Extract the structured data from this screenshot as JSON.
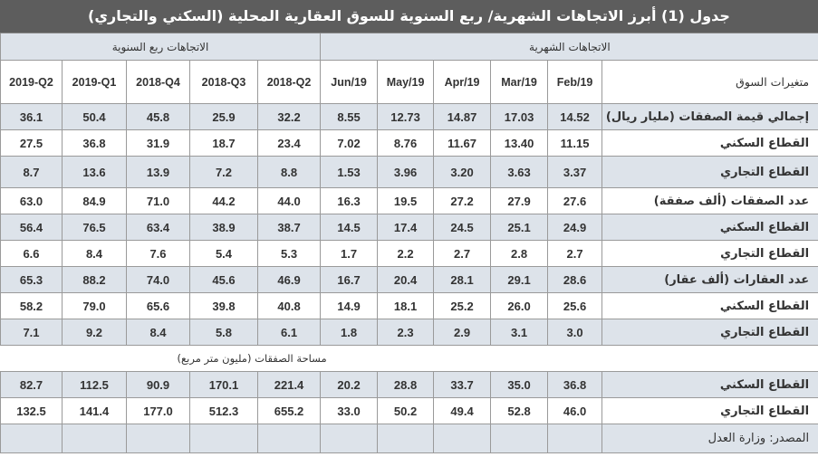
{
  "title": "جدول (1) أبرز الاتجاهات الشهرية/ ربع السنوية للسوق العقارية المحلية (السكني والتجاري)",
  "groups": {
    "quarterly": "الاتجاهات ربع السنوية",
    "monthly": "الاتجاهات الشهرية"
  },
  "columns": {
    "label_header": "متغيرات السوق",
    "quarterly": [
      "2019-Q2",
      "2019-Q1",
      "2018-Q4",
      "2018-Q3",
      "2018-Q2"
    ],
    "monthly": [
      "Jun/19",
      "May/19",
      "Apr/19",
      "Mar/19",
      "Feb/19"
    ]
  },
  "rows": [
    {
      "label": "إجمالي قيمة الصفقات (مليار ريال)",
      "quarterly": [
        "36.1",
        "50.4",
        "45.8",
        "25.9",
        "32.2"
      ],
      "monthly": [
        "8.55",
        "12.73",
        "14.87",
        "17.03",
        "14.52"
      ]
    },
    {
      "label": "القطاع السكني",
      "quarterly": [
        "27.5",
        "36.8",
        "31.9",
        "18.7",
        "23.4"
      ],
      "monthly": [
        "7.02",
        "8.76",
        "11.67",
        "13.40",
        "11.15"
      ]
    },
    {
      "label": "القطاع التجاري",
      "quarterly": [
        "8.7",
        "13.6",
        "13.9",
        "7.2",
        "8.8"
      ],
      "monthly": [
        "1.53",
        "3.96",
        "3.20",
        "3.63",
        "3.37"
      ]
    },
    {
      "label": "عدد الصفقات (ألف صفقة)",
      "quarterly": [
        "63.0",
        "84.9",
        "71.0",
        "44.2",
        "44.0"
      ],
      "monthly": [
        "16.3",
        "19.5",
        "27.2",
        "27.9",
        "27.6"
      ]
    },
    {
      "label": "القطاع السكني",
      "quarterly": [
        "56.4",
        "76.5",
        "63.4",
        "38.9",
        "38.7"
      ],
      "monthly": [
        "14.5",
        "17.4",
        "24.5",
        "25.1",
        "24.9"
      ]
    },
    {
      "label": "القطاع التجاري",
      "quarterly": [
        "6.6",
        "8.4",
        "7.6",
        "5.4",
        "5.3"
      ],
      "monthly": [
        "1.7",
        "2.2",
        "2.7",
        "2.8",
        "2.7"
      ]
    },
    {
      "label": "عدد العقارات (ألف عقار)",
      "quarterly": [
        "65.3",
        "88.2",
        "74.0",
        "45.6",
        "46.9"
      ],
      "monthly": [
        "16.7",
        "20.4",
        "28.1",
        "29.1",
        "28.6"
      ]
    },
    {
      "label": "القطاع السكني",
      "quarterly": [
        "58.2",
        "79.0",
        "65.6",
        "39.8",
        "40.8"
      ],
      "monthly": [
        "14.9",
        "18.1",
        "25.2",
        "26.0",
        "25.6"
      ]
    },
    {
      "label": "القطاع التجاري",
      "quarterly": [
        "7.1",
        "9.2",
        "8.4",
        "5.8",
        "6.1"
      ],
      "monthly": [
        "1.8",
        "2.3",
        "2.9",
        "3.1",
        "3.0"
      ]
    }
  ],
  "section": {
    "label": "مساحة الصفقات (مليون متر مربع)",
    "rows": [
      {
        "label": "القطاع السكني",
        "quarterly": [
          "82.7",
          "112.5",
          "90.9",
          "170.1",
          "221.4"
        ],
        "monthly": [
          "20.2",
          "28.8",
          "33.7",
          "35.0",
          "36.8"
        ]
      },
      {
        "label": "القطاع التجاري",
        "quarterly": [
          "132.5",
          "141.4",
          "177.0",
          "512.3",
          "655.2"
        ],
        "monthly": [
          "33.0",
          "50.2",
          "49.4",
          "52.8",
          "46.0"
        ]
      }
    ]
  },
  "source": "المصدر: وزارة العدل",
  "colors": {
    "title_bg": "#5d5d5d",
    "shade_bg": "#dde3ea",
    "border": "#9a9a9a",
    "text": "#333333"
  }
}
